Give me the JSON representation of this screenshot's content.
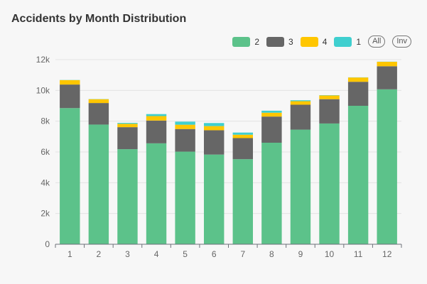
{
  "title": "Accidents by Month Distribution",
  "legend": {
    "items": [
      {
        "label": "2",
        "color": "#5cc28a"
      },
      {
        "label": "3",
        "color": "#666666"
      },
      {
        "label": "4",
        "color": "#ffc600"
      },
      {
        "label": "1",
        "color": "#3fcfcf"
      }
    ],
    "all_label": "All",
    "inv_label": "Inv"
  },
  "chart_data": {
    "type": "bar",
    "stacked": true,
    "categories": [
      "1",
      "2",
      "3",
      "4",
      "5",
      "6",
      "7",
      "8",
      "9",
      "10",
      "11",
      "12"
    ],
    "series": [
      {
        "name": "2",
        "color": "#5cc28a",
        "values": [
          8850,
          7780,
          6180,
          6560,
          6020,
          5830,
          5530,
          6600,
          7450,
          7850,
          9000,
          10070
        ]
      },
      {
        "name": "3",
        "color": "#666666",
        "values": [
          1530,
          1400,
          1430,
          1480,
          1470,
          1580,
          1370,
          1700,
          1620,
          1580,
          1560,
          1500
        ]
      },
      {
        "name": "4",
        "color": "#ffc600",
        "values": [
          290,
          250,
          220,
          290,
          280,
          270,
          220,
          250,
          230,
          240,
          280,
          290
        ]
      },
      {
        "name": "1",
        "color": "#3fcfcf",
        "values": [
          10,
          10,
          60,
          130,
          200,
          200,
          140,
          130,
          60,
          20,
          10,
          10
        ]
      }
    ],
    "yticks": [
      "0",
      "2k",
      "4k",
      "6k",
      "8k",
      "10k",
      "12k"
    ],
    "ylim": [
      0,
      12000
    ],
    "grid": true,
    "legend_position": "top-right"
  }
}
